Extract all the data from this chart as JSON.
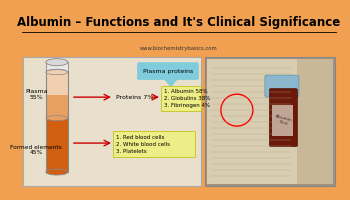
{
  "title": "Albumin – Functions and It's Clinical Significance",
  "website": "www.biochemistrybasics.com",
  "title_bg": "#f0a050",
  "content_bg": "#c8c0a8",
  "plasma_label": "Plasma\n55%",
  "formed_label": "Formed elements\n45%",
  "proteins_label": "Proteins 7%",
  "plasma_proteins_label": "Plasma proteins",
  "plasma_list": "1. Albumin 58%\n2. Globulins 38%\n3. Fibrinogen 4%",
  "formed_list": "1. Red blood cells\n2. White blood cells\n3. Platelets",
  "plasma_color_top": "#f0d0b0",
  "plasma_color_mid": "#e8a060",
  "formed_color": "#d06010",
  "white_cap_color": "#e8e8e8",
  "arrow_color": "#cc0000",
  "plasma_proteins_bg": "#80ccdd",
  "plasma_list_bg": "#eeee88",
  "formed_list_bg": "#eeee88",
  "left_panel_bg": "#e8e0cc",
  "right_panel_bg": "#a09080",
  "title_fontsize": 8.5,
  "small_fontsize": 4.5,
  "tiny_fontsize": 4.0
}
